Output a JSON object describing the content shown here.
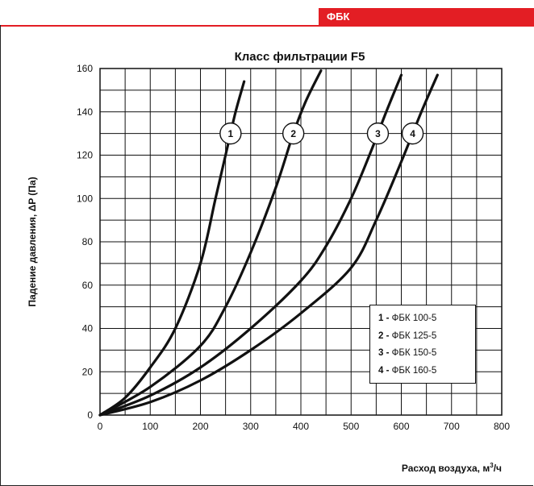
{
  "header": {
    "tag": "ФБК",
    "accent_color": "#e31e24"
  },
  "chart_data": {
    "type": "line",
    "title": "Класс фильтрации F5",
    "xlabel": "Расход воздуха,  м",
    "xlabel_sup": "3",
    "xlabel_suffix": "/ч",
    "ylabel": "Падение давления, ΔP (Па)",
    "xlim": [
      0,
      800
    ],
    "ylim": [
      0,
      160
    ],
    "x_ticks": [
      "0",
      "100",
      "200",
      "300",
      "400",
      "500",
      "600",
      "700",
      "800"
    ],
    "y_ticks": [
      "0",
      "20",
      "40",
      "60",
      "80",
      "100",
      "120",
      "140",
      "160"
    ],
    "grid": true,
    "legend_position": "bottom-right",
    "series": [
      {
        "marker": "1",
        "name": "ФБК 100-5",
        "x": [
          0,
          50,
          100,
          150,
          200,
          230,
          255,
          270,
          287
        ],
        "y": [
          0,
          8,
          22,
          40,
          70,
          100,
          125,
          140,
          154
        ]
      },
      {
        "marker": "2",
        "name": "ФБК 125-5",
        "x": [
          0,
          100,
          200,
          250,
          300,
          350,
          385,
          410,
          440
        ],
        "y": [
          0,
          13,
          32,
          50,
          75,
          105,
          130,
          145,
          159
        ]
      },
      {
        "marker": "3",
        "name": "ФБК 150-5",
        "x": [
          0,
          100,
          200,
          300,
          400,
          450,
          500,
          540,
          570,
          600
        ],
        "y": [
          0,
          9,
          22,
          40,
          62,
          78,
          100,
          122,
          140,
          157
        ]
      },
      {
        "marker": "4",
        "name": "ФБК 160-5",
        "x": [
          0,
          100,
          200,
          300,
          400,
          500,
          550,
          600,
          640,
          672
        ],
        "y": [
          0,
          6,
          16,
          30,
          47,
          68,
          90,
          117,
          140,
          157
        ]
      }
    ],
    "legend": [
      {
        "num": "1",
        "sep": " - ",
        "label": "ФБК 100-5"
      },
      {
        "num": "2",
        "sep": " - ",
        "label": "ФБК 125-5"
      },
      {
        "num": "3",
        "sep": " - ",
        "label": "ФБК 150-5"
      },
      {
        "num": "4",
        "sep": " - ",
        "label": "ФБК 160-5"
      }
    ]
  }
}
